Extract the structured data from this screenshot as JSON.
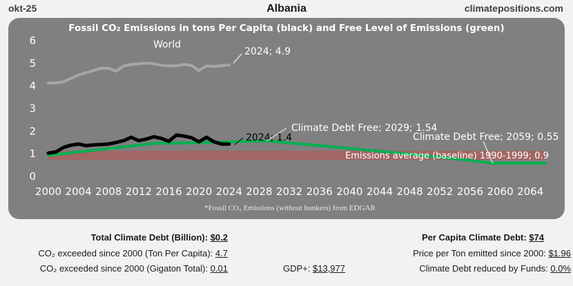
{
  "header": {
    "date_label": "okt-25",
    "country": "Albania",
    "site": "climatepositions.com"
  },
  "chart_data": {
    "type": "line",
    "title": "Fossil CO₂ Emissions in tons Per Capita (black) and Free Level of Emissions (green)",
    "footnote": "*Fossil CO₂ Emissions (without bunkers) from EDGAR",
    "x_ticks": [
      "2000",
      "2004",
      "2008",
      "2012",
      "2016",
      "2020",
      "2024",
      "2028",
      "2032",
      "2036",
      "2040",
      "2044",
      "2048",
      "2052",
      "2056",
      "2060",
      "2064"
    ],
    "y_ticks": [
      "0",
      "1",
      "2",
      "3",
      "4",
      "5",
      "6"
    ],
    "xlim": [
      2000,
      2066
    ],
    "ylim": [
      0,
      6
    ],
    "grid": false,
    "series": [
      {
        "key": "world",
        "color": "#a6a6a6",
        "x": [
          2000,
          2001,
          2002,
          2003,
          2004,
          2005,
          2006,
          2007,
          2008,
          2009,
          2010,
          2011,
          2012,
          2013,
          2014,
          2015,
          2016,
          2017,
          2018,
          2019,
          2020,
          2021,
          2022,
          2023,
          2024
        ],
        "y": [
          4.1,
          4.1,
          4.15,
          4.3,
          4.45,
          4.55,
          4.65,
          4.75,
          4.75,
          4.62,
          4.85,
          4.92,
          4.95,
          4.98,
          4.95,
          4.88,
          4.85,
          4.86,
          4.92,
          4.88,
          4.65,
          4.85,
          4.83,
          4.86,
          4.9
        ]
      },
      {
        "key": "albania",
        "color": "#000000",
        "x": [
          2000,
          2001,
          2002,
          2003,
          2004,
          2005,
          2006,
          2007,
          2008,
          2009,
          2010,
          2011,
          2012,
          2013,
          2014,
          2015,
          2016,
          2017,
          2018,
          2019,
          2020,
          2021,
          2022,
          2023,
          2024
        ],
        "y": [
          1.0,
          1.05,
          1.25,
          1.35,
          1.4,
          1.33,
          1.36,
          1.38,
          1.4,
          1.47,
          1.55,
          1.7,
          1.55,
          1.62,
          1.72,
          1.65,
          1.52,
          1.8,
          1.75,
          1.68,
          1.5,
          1.7,
          1.5,
          1.4,
          1.4
        ]
      },
      {
        "key": "free_level",
        "color": "#00b050",
        "x": [
          2000,
          2004,
          2008,
          2012,
          2014,
          2018,
          2022,
          2026,
          2029,
          2032,
          2036,
          2040,
          2044,
          2048,
          2052,
          2056,
          2059,
          2060,
          2066
        ],
        "y": [
          0.9,
          1.05,
          1.2,
          1.35,
          1.43,
          1.45,
          1.48,
          1.52,
          1.54,
          1.45,
          1.33,
          1.21,
          1.08,
          0.95,
          0.82,
          0.68,
          0.55,
          0.55,
          0.55
        ]
      }
    ],
    "baseline": {
      "value": 0.9,
      "band": [
        0.7,
        1.1
      ],
      "color": "#c0504d"
    },
    "annotations": {
      "world_label": "World",
      "world_end": "2024; 4.9",
      "albania_end": "2024; 1.4",
      "debt_free_2029": "Climate Debt Free; 2029; 1.54",
      "debt_free_2059": "Climate Debt Free; 2059; 0.55",
      "baseline_label": "Emissions average (baseline) 1990-1999; 0.9"
    }
  },
  "footer": {
    "total_debt": {
      "label": "Total Climate Debt (Billion):",
      "value": "$0.2"
    },
    "co2_ton": {
      "label": "CO₂ exceeded since 2000 (Ton Per Capita):",
      "value": "4.7"
    },
    "co2_gigaton": {
      "label": "CO₂ exceeded since 2000 (Gigaton Total):",
      "value": "0.01"
    },
    "gdp": {
      "label": "GDP+:",
      "value": "$13,977"
    },
    "per_capita_debt": {
      "label": "Per Capita Climate Debt:",
      "value": "$74"
    },
    "price_per_ton": {
      "label": "Price per Ton emitted since 2000:",
      "value": "$1.96"
    },
    "reduced_by_funds": {
      "label": "Climate Debt reduced by Funds:",
      "value": "0.0%"
    }
  }
}
